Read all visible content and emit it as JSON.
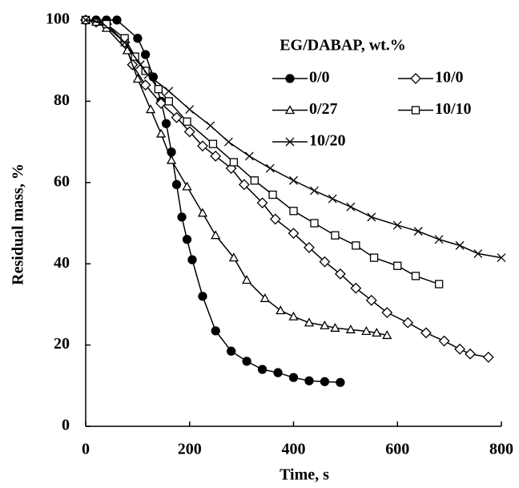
{
  "chart_data": {
    "type": "line",
    "xlabel": "Time, s",
    "ylabel": "Residual mass, %",
    "legend_title": "EG/DABAP, wt.%",
    "legend": "upper right",
    "xlim": [
      0,
      800
    ],
    "xticks": [
      0,
      200,
      400,
      600,
      800
    ],
    "ylim": [
      0,
      100
    ],
    "yticks": [
      0,
      20,
      40,
      60,
      80,
      100
    ],
    "grid": false,
    "series": [
      {
        "name": "0/0",
        "color": "#000000",
        "marker": "circle-filled",
        "x": [
          0,
          20,
          40,
          60,
          100,
          115,
          130,
          145,
          155,
          165,
          175,
          185,
          195,
          205,
          225,
          250,
          280,
          310,
          340,
          370,
          400,
          430,
          460,
          490
        ],
        "values": [
          100,
          100,
          100,
          100,
          95.5,
          91.5,
          86,
          80,
          74.5,
          67.5,
          59.5,
          51.5,
          46,
          41,
          32,
          23.5,
          18.5,
          16,
          14,
          13.2,
          12,
          11.2,
          11,
          10.8
        ]
      },
      {
        "name": "10/0",
        "color": "#000000",
        "marker": "diamond",
        "x": [
          0,
          20,
          40,
          75,
          90,
          115,
          145,
          175,
          200,
          225,
          250,
          280,
          305,
          340,
          365,
          400,
          430,
          460,
          490,
          520,
          550,
          580,
          620,
          655,
          690,
          720,
          740,
          775
        ],
        "values": [
          100,
          99.5,
          99,
          94.5,
          89,
          84,
          79.5,
          76,
          72.5,
          69,
          66.5,
          63.5,
          59.5,
          55,
          51,
          47.5,
          44,
          40.5,
          37.5,
          34,
          31,
          28,
          25.5,
          23,
          21,
          19,
          17.8,
          17
        ]
      },
      {
        "name": "0/27",
        "color": "#000000",
        "marker": "triangle",
        "x": [
          0,
          20,
          40,
          80,
          100,
          125,
          145,
          165,
          195,
          225,
          250,
          285,
          310,
          345,
          375,
          400,
          430,
          460,
          480,
          510,
          540,
          560,
          580
        ],
        "values": [
          100,
          99.5,
          98,
          92.5,
          85.5,
          78,
          72,
          65.5,
          59,
          52.5,
          47,
          41.5,
          36,
          31.5,
          28.5,
          27,
          25.5,
          24.8,
          24.2,
          23.8,
          23.4,
          23,
          22.4
        ]
      },
      {
        "name": "10/10",
        "color": "#000000",
        "marker": "square",
        "x": [
          0,
          40,
          75,
          95,
          115,
          140,
          160,
          195,
          245,
          285,
          325,
          360,
          400,
          440,
          480,
          520,
          555,
          600,
          635,
          680
        ],
        "values": [
          100,
          99,
          95.5,
          91,
          87.5,
          83,
          80,
          75,
          69.5,
          65,
          60.5,
          57,
          53,
          50,
          47,
          44.5,
          41.5,
          39.5,
          37,
          35
        ]
      },
      {
        "name": "10/20",
        "color": "#000000",
        "marker": "x",
        "x": [
          0,
          30,
          75,
          105,
          120,
          160,
          200,
          240,
          275,
          315,
          355,
          400,
          440,
          475,
          510,
          550,
          600,
          640,
          680,
          720,
          755,
          800
        ],
        "values": [
          100,
          99.5,
          94.5,
          89,
          86.5,
          82.5,
          78,
          74,
          70,
          66.5,
          63.5,
          60.5,
          58,
          56,
          54,
          51.5,
          49.5,
          48,
          46,
          44.5,
          42.5,
          41.5
        ]
      }
    ]
  }
}
